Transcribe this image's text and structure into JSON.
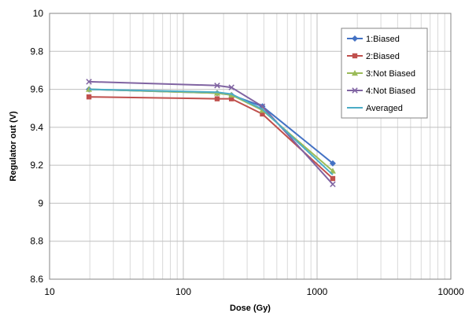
{
  "chart_data": {
    "type": "line",
    "xscale": "log",
    "xlim": [
      10,
      10000
    ],
    "ylim": [
      8.6,
      10
    ],
    "x_ticks": [
      "10",
      "100",
      "1000",
      "10000"
    ],
    "y_ticks": [
      "8.6",
      "8.8",
      "9",
      "9.2",
      "9.4",
      "9.6",
      "9.8",
      "10"
    ],
    "xlabel": "Dose (Gy)",
    "ylabel": "Regulator out (V)",
    "grid": true,
    "legend_position": "top-right",
    "x": [
      19.7,
      179,
      229,
      390,
      1310
    ],
    "series": [
      {
        "name": "1:Biased",
        "values": [
          9.6,
          9.58,
          9.57,
          9.51,
          9.21
        ],
        "color": "#4472C4",
        "marker": "diamond"
      },
      {
        "name": "2:Biased",
        "values": [
          9.56,
          9.55,
          9.55,
          9.47,
          9.13
        ],
        "color": "#C0504D",
        "marker": "square"
      },
      {
        "name": "3:Not Biased",
        "values": [
          9.6,
          9.58,
          9.57,
          9.49,
          9.17
        ],
        "color": "#9BBB59",
        "marker": "triangle"
      },
      {
        "name": "4:Not Biased",
        "values": [
          9.64,
          9.62,
          9.61,
          9.51,
          9.1
        ],
        "color": "#8064A2",
        "marker": "x"
      },
      {
        "name": "Averaged",
        "values": [
          9.6,
          9.585,
          9.575,
          9.495,
          9.15
        ],
        "color": "#4BACC6",
        "marker": "none"
      }
    ]
  }
}
